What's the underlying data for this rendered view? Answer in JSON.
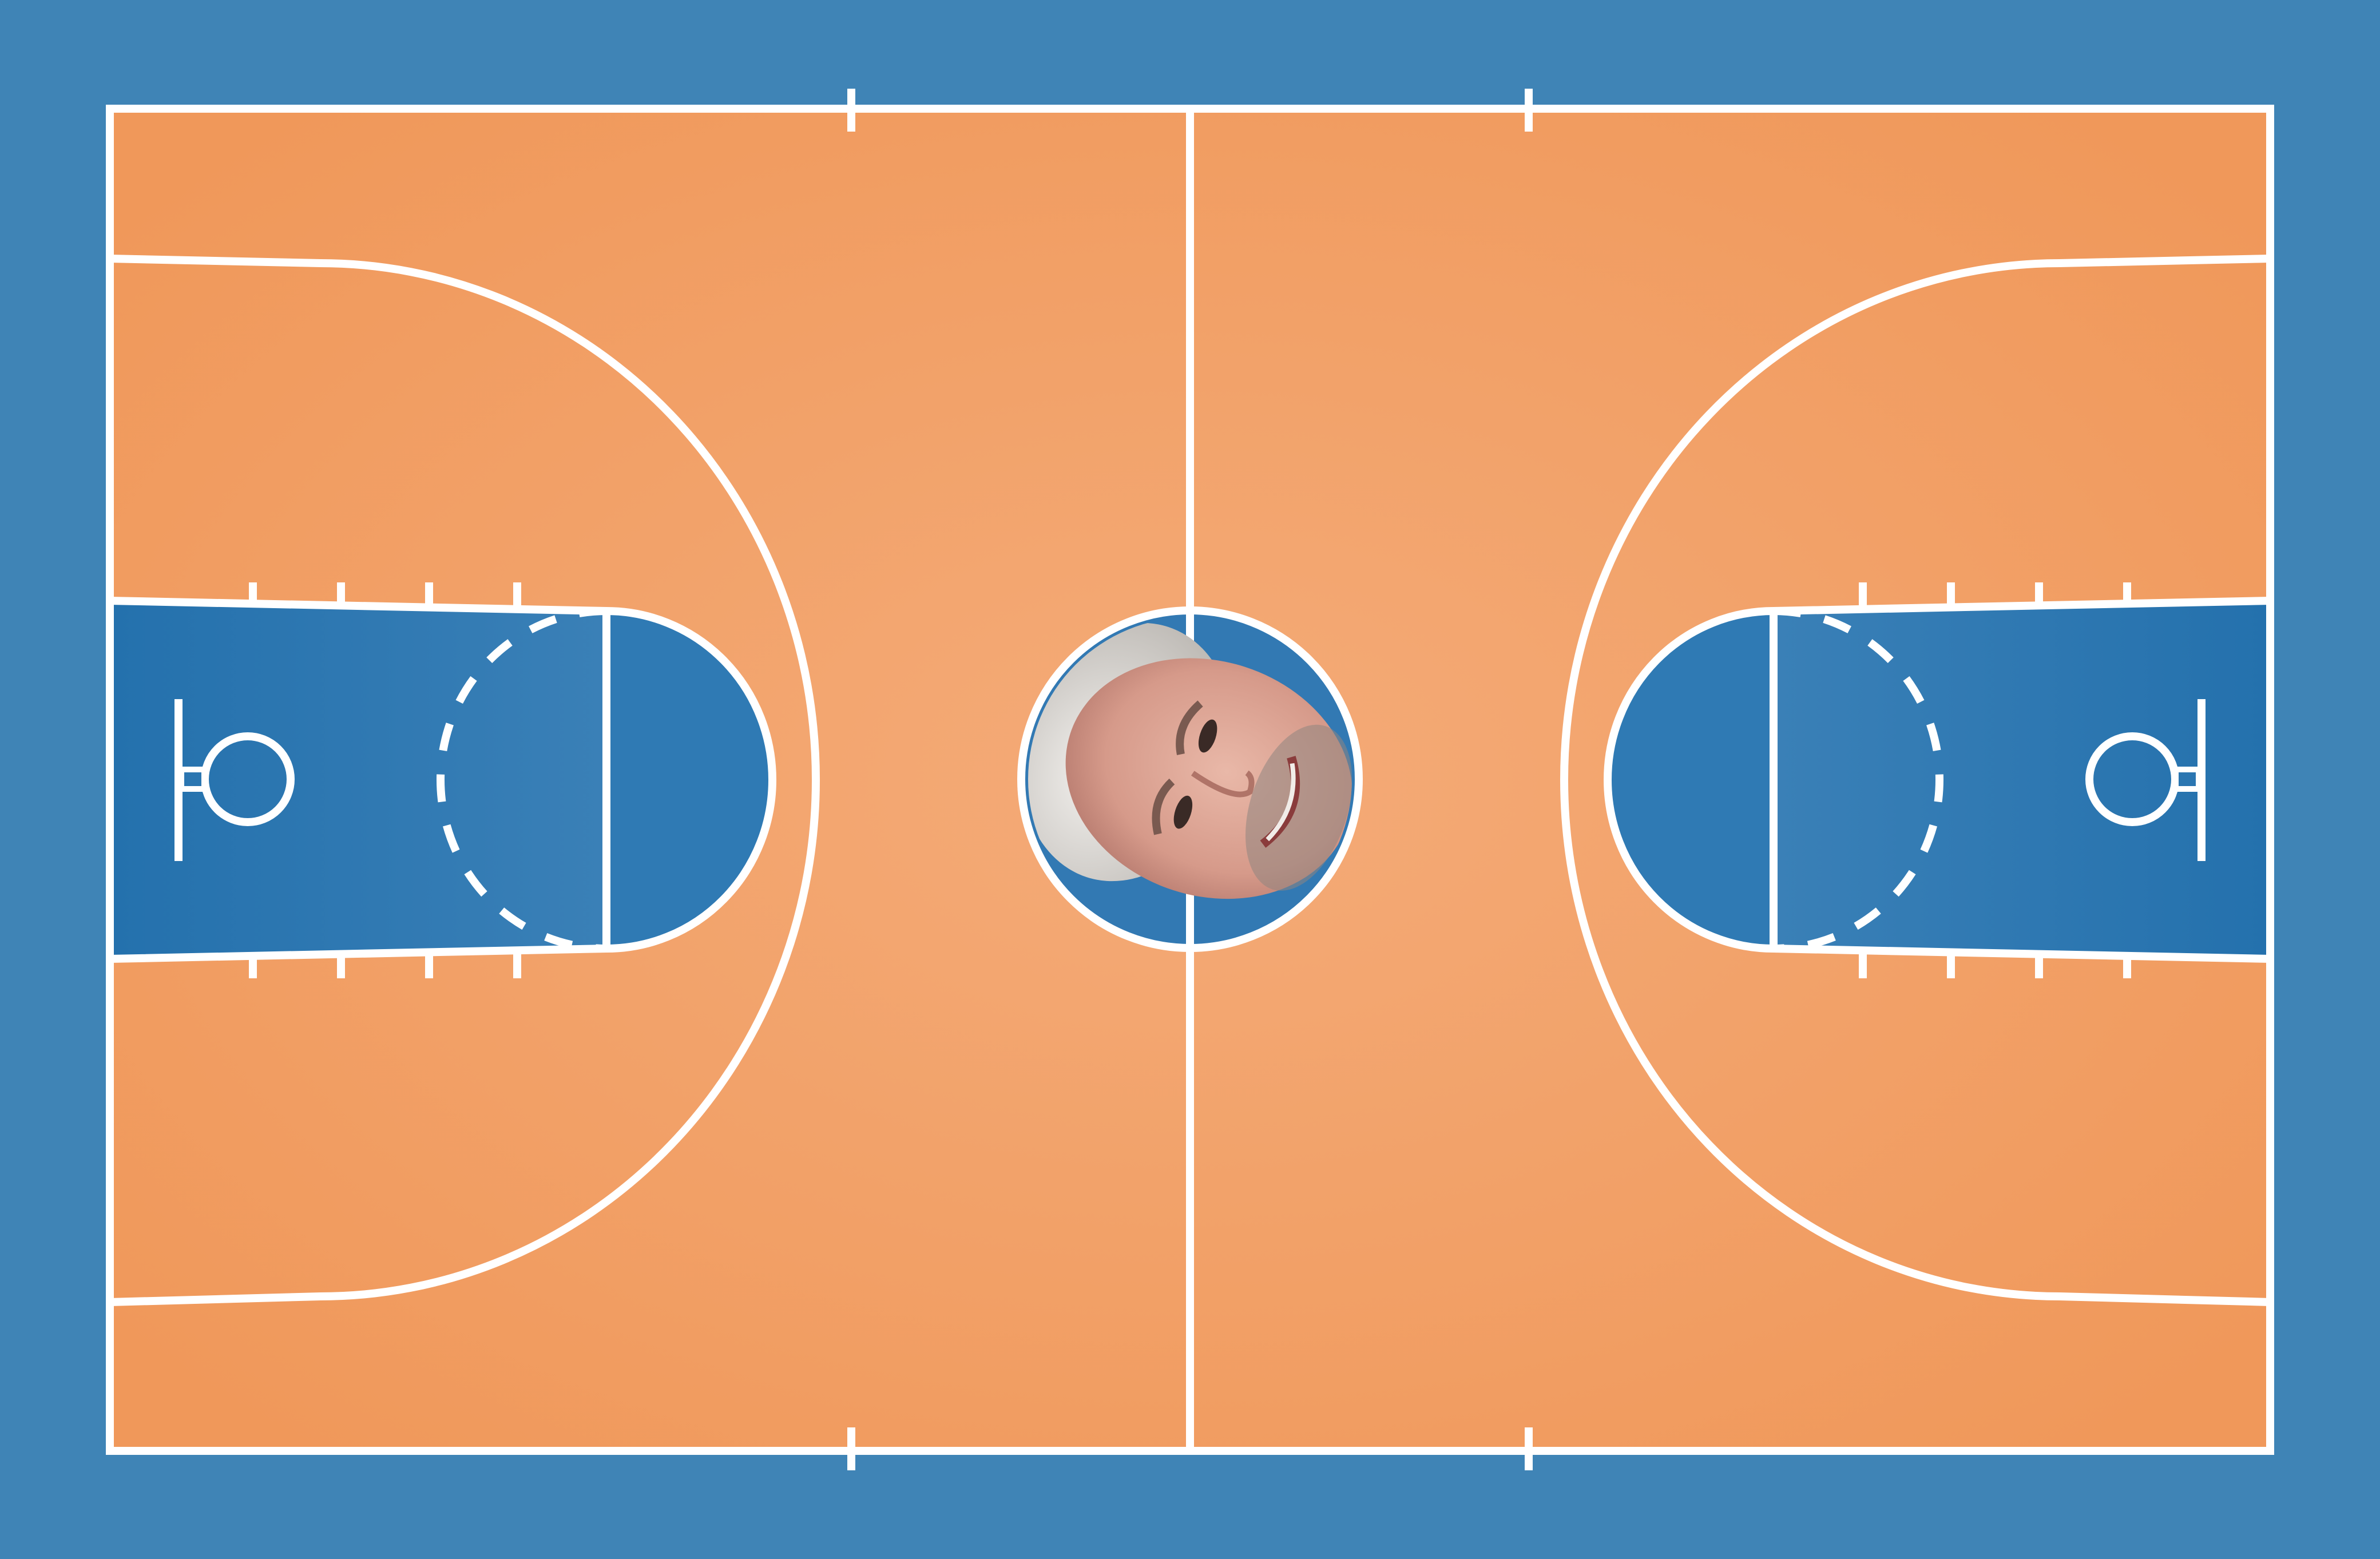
{
  "colors": {
    "background": "#3f84b6",
    "court_floor": "#f2a46a",
    "court_floor_edge": "#f0985a",
    "paint": "#2f7ab4",
    "paint_dark": "#2471ad",
    "lines": "#ffffff",
    "center_circle_fill": "#3279b3"
  },
  "court": {
    "surface": "basketball-court",
    "center_image": "face-photo-icon"
  }
}
